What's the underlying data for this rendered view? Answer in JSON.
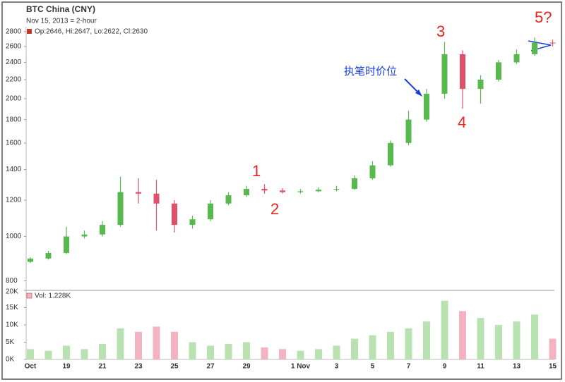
{
  "chart_data": {
    "type": "candlestick",
    "title": "BTC China (CNY)",
    "subtitle": "Nov 15, 2013 = 2-hour",
    "ohlc_label": "Op:2646, Hi:2647, Lo:2622, Cl:2630",
    "categories": [
      "Oct",
      null,
      "19",
      null,
      "21",
      null,
      "23",
      null,
      "25",
      null,
      "27",
      null,
      "29",
      null,
      null,
      "1 Nov",
      null,
      "3",
      null,
      "5",
      null,
      "7",
      null,
      "9",
      null,
      "11",
      null,
      "13",
      null,
      "15"
    ],
    "open": [
      880,
      895,
      920,
      1000,
      1010,
      1060,
      1250,
      1240,
      1180,
      1060,
      1090,
      1180,
      1230,
      1270,
      1260,
      1250,
      1255,
      1265,
      1270,
      1340,
      1430,
      1600,
      1800,
      2050,
      2500,
      2100,
      2200,
      2400,
      2500,
      2650
    ],
    "high": [
      900,
      930,
      1050,
      1030,
      1080,
      1350,
      1340,
      1330,
      1200,
      1110,
      1200,
      1250,
      1290,
      1300,
      1275,
      1270,
      1280,
      1290,
      1360,
      1460,
      1620,
      1880,
      2100,
      2660,
      2550,
      2250,
      2430,
      2560,
      2720,
      2690
    ],
    "low": [
      875,
      890,
      915,
      990,
      1000,
      1050,
      1180,
      1030,
      1020,
      1040,
      1080,
      1170,
      1220,
      1240,
      1240,
      1240,
      1250,
      1255,
      1265,
      1330,
      1420,
      1580,
      1780,
      2000,
      1900,
      1950,
      2180,
      2380,
      2480,
      2600
    ],
    "close": [
      895,
      920,
      1000,
      1010,
      1060,
      1250,
      1240,
      1180,
      1060,
      1090,
      1180,
      1230,
      1270,
      1260,
      1250,
      1255,
      1265,
      1270,
      1340,
      1430,
      1600,
      1800,
      2050,
      2500,
      2100,
      2200,
      2400,
      2500,
      2650,
      2640
    ],
    "up_color": "#58b94f",
    "down_color": "#e0506a",
    "log_scale": true,
    "ylim": [
      790,
      2870
    ],
    "yticks": [
      800,
      1000,
      1200,
      1400,
      1600,
      1800,
      2000,
      2200,
      2400,
      2600,
      2800
    ],
    "volume": {
      "label": "Vol: 1.228K",
      "values": [
        3000,
        2500,
        4000,
        3000,
        4500,
        9000,
        8000,
        9500,
        8000,
        5000,
        4000,
        4500,
        5000,
        3500,
        3000,
        2500,
        3000,
        4000,
        6000,
        7000,
        8000,
        9000,
        11000,
        17000,
        14000,
        12000,
        10000,
        11000,
        13000,
        6000
      ],
      "up_color": "#b8e3b0",
      "down_color": "#f3b3c3",
      "ylim": [
        0,
        20000
      ],
      "yticks": [
        {
          "value": 0,
          "label": "0K"
        },
        {
          "value": 5000,
          "label": "5K"
        },
        {
          "value": 10000,
          "label": "10K"
        },
        {
          "value": 15000,
          "label": "15K"
        },
        {
          "value": 20000,
          "label": "20K"
        }
      ]
    },
    "annotations": [
      "1",
      "2",
      "3",
      "4",
      "5?",
      "执笔时价位"
    ]
  }
}
